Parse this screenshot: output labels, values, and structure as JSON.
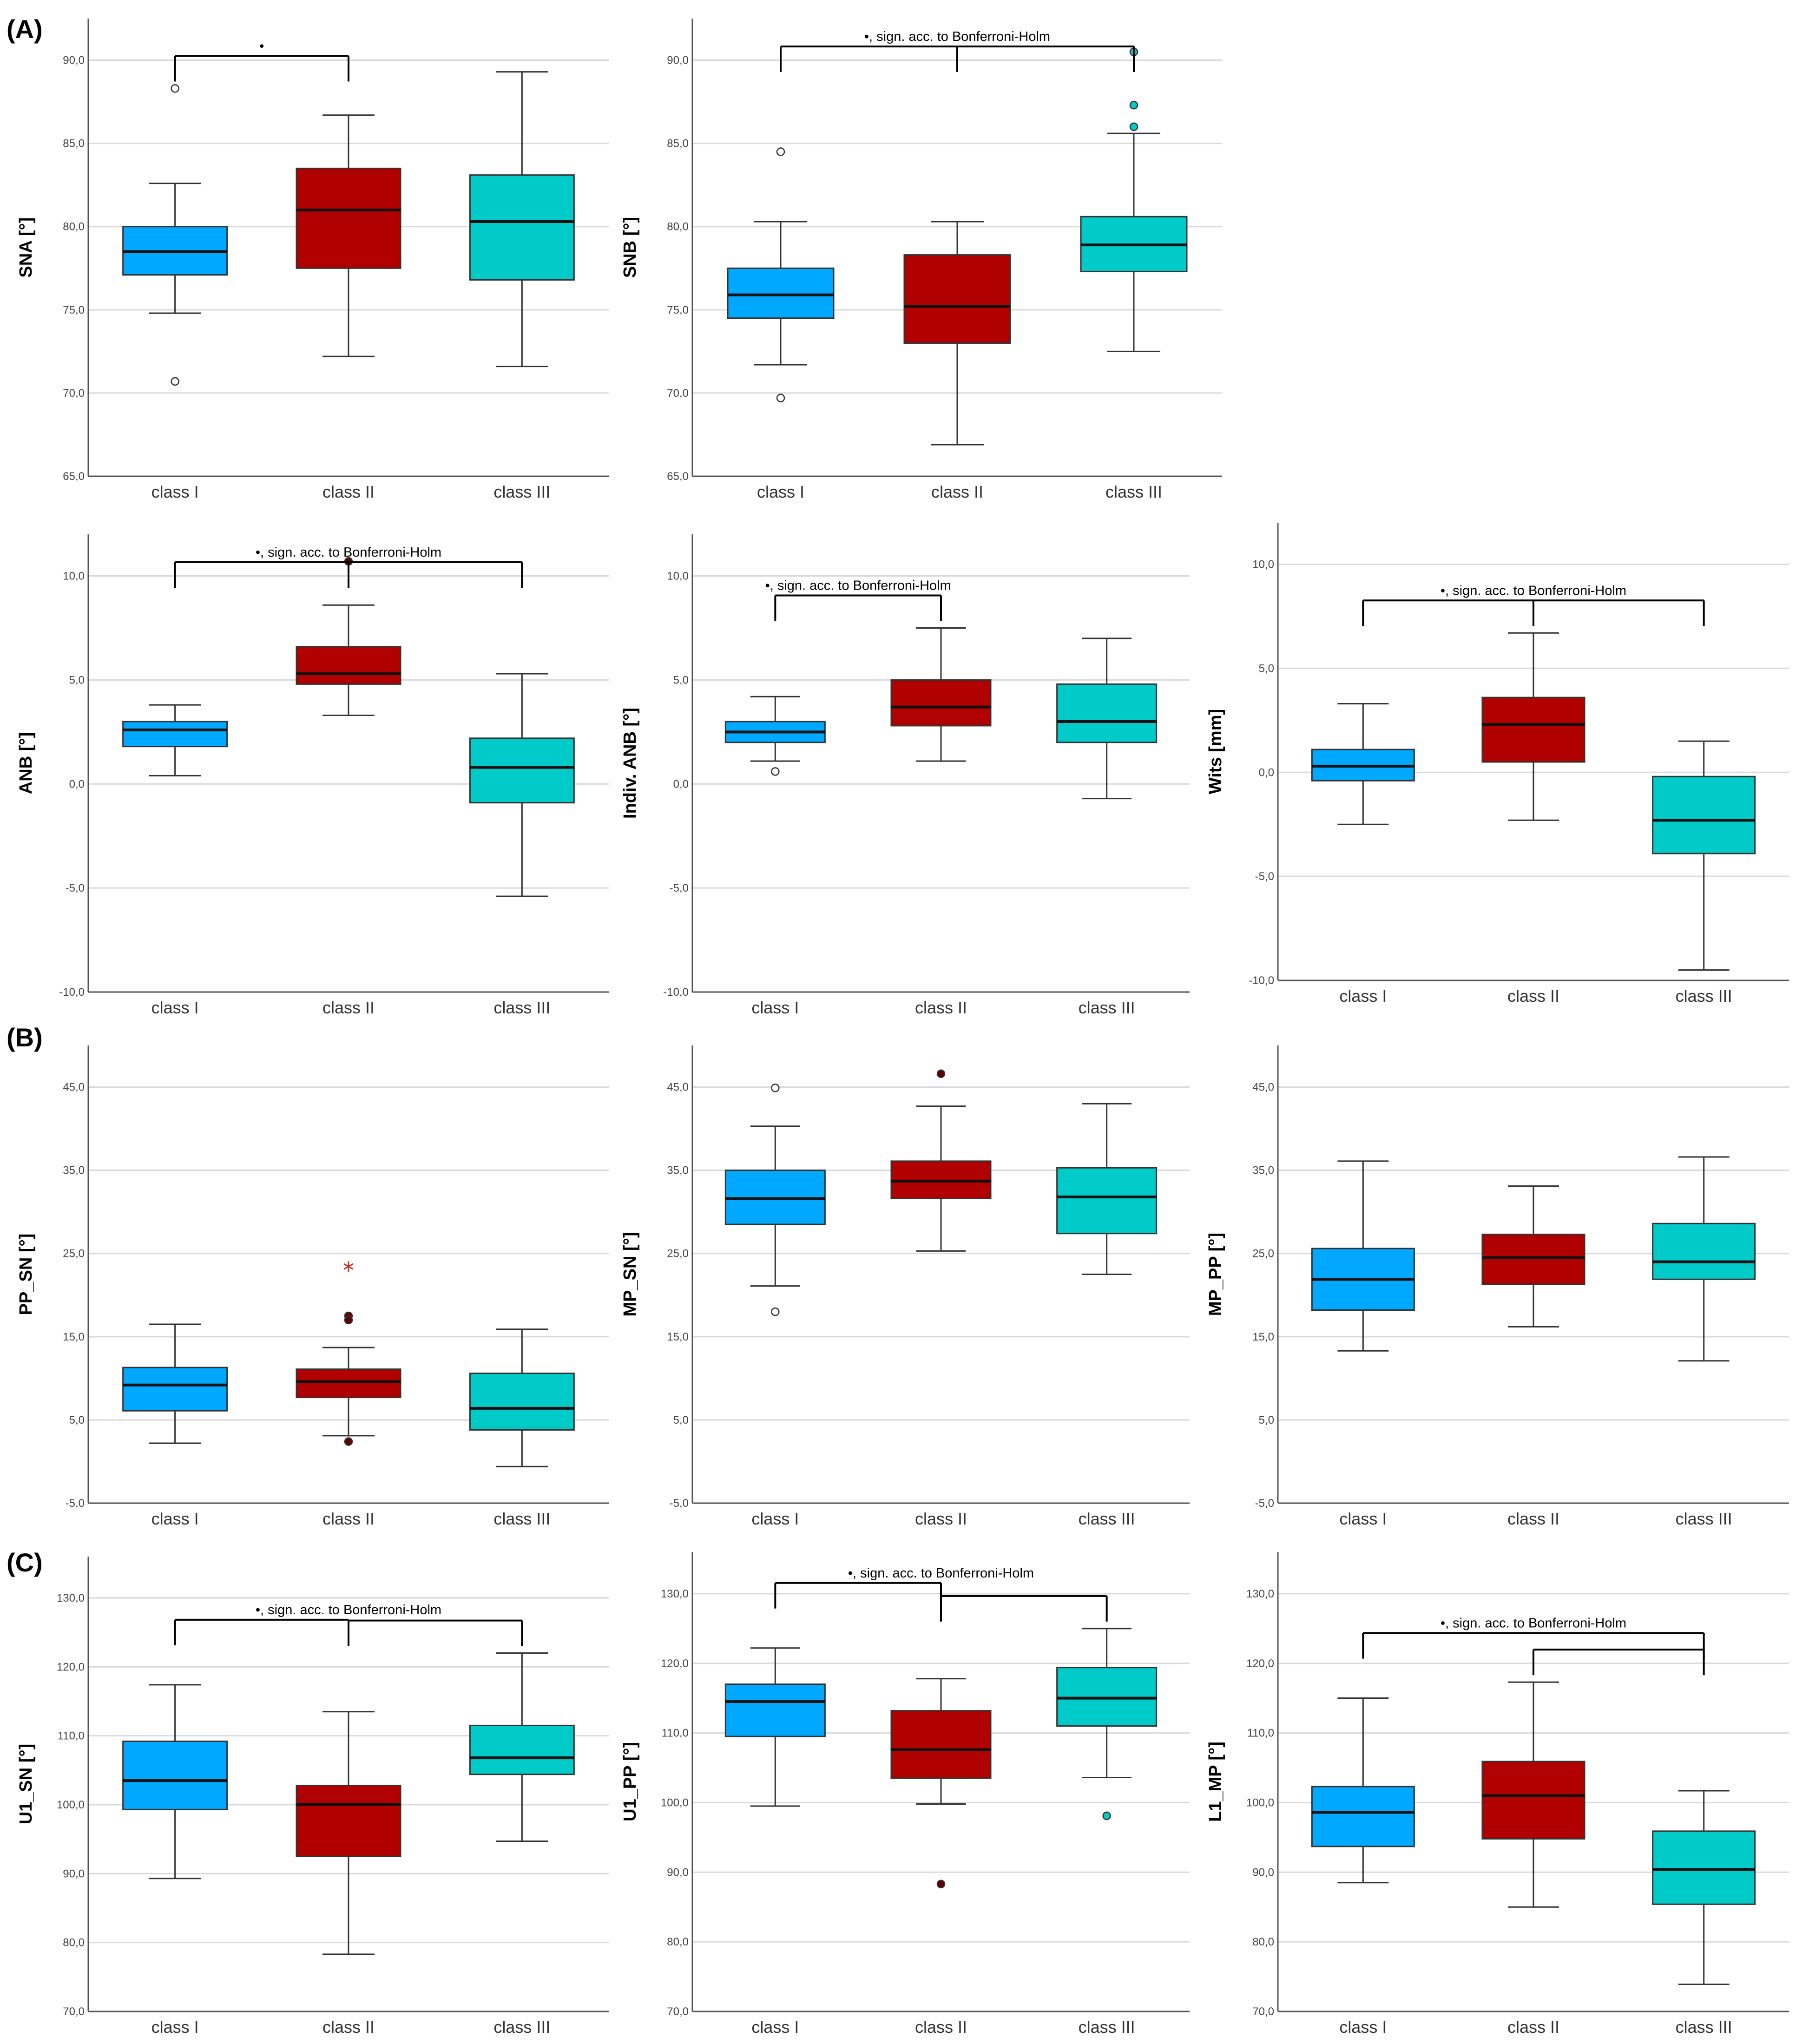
{
  "figure": {
    "sections": [
      "(A)",
      "(B)",
      "(C)"
    ],
    "colors": {
      "class_i": "#00a9ff",
      "class_ii": "#b00000",
      "class_iii": "#00cbc8",
      "gridline": "#d9d9d9",
      "whisker": "#333333"
    }
  },
  "chart_data": [
    {
      "type": "boxplot",
      "ylabel": "SNA [°]",
      "categories": [
        "class I",
        "class II",
        "class III"
      ],
      "ylim": [
        65.0,
        92.5
      ],
      "ticks": [
        "65,0",
        "70,0",
        "75,0",
        "80,0",
        "85,0",
        "90,0"
      ],
      "boxes": [
        {
          "min": 74.8,
          "q1": 77.1,
          "median": 78.5,
          "q3": 80.0,
          "max": 82.6,
          "outliers": [
            88.3,
            70.7
          ]
        },
        {
          "min": 72.2,
          "q1": 77.5,
          "median": 81.0,
          "q3": 83.5,
          "max": 86.7,
          "outliers": []
        },
        {
          "min": 71.6,
          "q1": 76.8,
          "median": 80.3,
          "q3": 83.1,
          "max": 89.3,
          "outliers": []
        }
      ],
      "annotation": "•",
      "comparisons": [
        [
          0,
          1
        ]
      ]
    },
    {
      "type": "boxplot",
      "ylabel": "SNB [°]",
      "categories": [
        "class I",
        "class II",
        "class III"
      ],
      "ylim": [
        65.0,
        92.5
      ],
      "ticks": [
        "65,0",
        "70,0",
        "75,0",
        "80,0",
        "85,0",
        "90,0"
      ],
      "boxes": [
        {
          "min": 71.7,
          "q1": 74.5,
          "median": 75.9,
          "q3": 77.5,
          "max": 80.3,
          "outliers": [
            84.5,
            69.7
          ]
        },
        {
          "min": 66.9,
          "q1": 73.0,
          "median": 75.2,
          "q3": 78.3,
          "max": 80.3,
          "outliers": []
        },
        {
          "min": 72.5,
          "q1": 77.3,
          "median": 78.9,
          "q3": 80.6,
          "max": 85.6,
          "outliers": [
            90.5,
            87.3,
            86.0
          ]
        }
      ],
      "annotation": "•, sign. acc. to Bonferroni-Holm",
      "comparisons": [
        [
          0,
          2
        ],
        [
          1,
          2
        ]
      ]
    },
    {
      "type": "boxplot",
      "ylabel": "ANB [°]",
      "categories": [
        "class I",
        "class II",
        "class III"
      ],
      "ylim": [
        -10.0,
        12.0
      ],
      "ticks": [
        "-10,0",
        "-5,0",
        "0,0",
        "5,0",
        "10,0"
      ],
      "boxes": [
        {
          "min": 0.4,
          "q1": 1.8,
          "median": 2.6,
          "q3": 3.0,
          "max": 3.8,
          "outliers": []
        },
        {
          "min": 3.3,
          "q1": 4.8,
          "median": 5.3,
          "q3": 6.6,
          "max": 8.6,
          "outliers": [
            10.7
          ]
        },
        {
          "min": -5.4,
          "q1": -0.9,
          "median": 0.8,
          "q3": 2.2,
          "max": 5.3,
          "outliers": []
        }
      ],
      "annotation": "•, sign. acc. to Bonferroni-Holm",
      "comparisons": [
        [
          0,
          1,
          2
        ]
      ]
    },
    {
      "type": "boxplot",
      "ylabel": "Indiv. ANB [°]",
      "categories": [
        "class I",
        "class II",
        "class III"
      ],
      "ylim": [
        -10.0,
        12.0
      ],
      "ticks": [
        "-10,0",
        "-5,0",
        "0,0",
        "5,0",
        "10,0"
      ],
      "boxes": [
        {
          "min": 1.1,
          "q1": 2.0,
          "median": 2.5,
          "q3": 3.0,
          "max": 4.2,
          "outliers": [
            0.6
          ]
        },
        {
          "min": 1.1,
          "q1": 2.8,
          "median": 3.7,
          "q3": 5.0,
          "max": 7.5,
          "outliers": []
        },
        {
          "min": -0.7,
          "q1": 2.0,
          "median": 3.0,
          "q3": 4.8,
          "max": 7.0,
          "outliers": []
        }
      ],
      "annotation": "•, sign. acc. to Bonferroni-Holm",
      "comparisons": [
        [
          0,
          1
        ]
      ]
    },
    {
      "type": "boxplot",
      "ylabel": "Wits [mm]",
      "categories": [
        "class I",
        "class II",
        "class III"
      ],
      "ylim": [
        -10.0,
        12.0
      ],
      "ticks": [
        "-10,0",
        "-5,0",
        "0,0",
        "5,0",
        "10,0"
      ],
      "boxes": [
        {
          "min": -2.5,
          "q1": -0.4,
          "median": 0.3,
          "q3": 1.1,
          "max": 3.3,
          "outliers": []
        },
        {
          "min": -2.3,
          "q1": 0.5,
          "median": 2.3,
          "q3": 3.6,
          "max": 6.7,
          "outliers": []
        },
        {
          "min": -9.5,
          "q1": -3.9,
          "median": -2.3,
          "q3": -0.2,
          "max": 1.5,
          "outliers": []
        }
      ],
      "annotation": "•, sign. acc. to Bonferroni-Holm",
      "comparisons": [
        [
          0,
          1,
          2
        ]
      ]
    },
    {
      "type": "boxplot",
      "ylabel": "PP_SN [°]",
      "categories": [
        "class I",
        "class II",
        "class III"
      ],
      "ylim": [
        -5.0,
        50.0
      ],
      "ticks": [
        "-5,0",
        "5,0",
        "15,0",
        "25,0",
        "35,0",
        "45,0"
      ],
      "boxes": [
        {
          "min": 2.2,
          "q1": 6.1,
          "median": 9.2,
          "q3": 11.3,
          "max": 16.5,
          "outliers": []
        },
        {
          "min": 3.1,
          "q1": 7.7,
          "median": 9.6,
          "q3": 11.1,
          "max": 13.7,
          "outliers": [
            17.5,
            17.0,
            2.4
          ]
        },
        {
          "min": -0.6,
          "q1": 3.8,
          "median": 6.4,
          "q3": 10.6,
          "max": 15.9,
          "outliers": []
        }
      ],
      "extremes": [
        null,
        23.6,
        null
      ],
      "annotation": "",
      "comparisons": []
    },
    {
      "type": "boxplot",
      "ylabel": "MP_SN [°]",
      "categories": [
        "class I",
        "class II",
        "class III"
      ],
      "ylim": [
        -5.0,
        50.0
      ],
      "ticks": [
        "-5,0",
        "5,0",
        "15,0",
        "25,0",
        "35,0",
        "45,0"
      ],
      "boxes": [
        {
          "min": 21.1,
          "q1": 28.5,
          "median": 31.6,
          "q3": 35.0,
          "max": 40.3,
          "outliers": [
            44.9,
            18.0
          ]
        },
        {
          "min": 25.3,
          "q1": 31.6,
          "median": 33.7,
          "q3": 36.1,
          "max": 42.7,
          "outliers": [
            46.6
          ]
        },
        {
          "min": 22.5,
          "q1": 27.4,
          "median": 31.8,
          "q3": 35.3,
          "max": 43.0,
          "outliers": []
        }
      ],
      "annotation": "",
      "comparisons": []
    },
    {
      "type": "boxplot",
      "ylabel": "MP_PP [°]",
      "categories": [
        "class I",
        "class II",
        "class III"
      ],
      "ylim": [
        -5.0,
        50.0
      ],
      "ticks": [
        "-5,0",
        "5,0",
        "15,0",
        "25,0",
        "35,0",
        "45,0"
      ],
      "boxes": [
        {
          "min": 13.3,
          "q1": 18.2,
          "median": 21.9,
          "q3": 25.6,
          "max": 36.1,
          "outliers": []
        },
        {
          "min": 16.2,
          "q1": 21.3,
          "median": 24.5,
          "q3": 27.3,
          "max": 33.1,
          "outliers": []
        },
        {
          "min": 12.1,
          "q1": 21.9,
          "median": 24.0,
          "q3": 28.6,
          "max": 36.6,
          "outliers": []
        }
      ],
      "annotation": "",
      "comparisons": []
    },
    {
      "type": "boxplot",
      "ylabel": "U1_SN [°]",
      "categories": [
        "class I",
        "class II",
        "class III"
      ],
      "ylim": [
        70.0,
        136.0
      ],
      "ticks": [
        "70,0",
        "80,0",
        "90,0",
        "100,0",
        "110,0",
        "120,0",
        "130,0"
      ],
      "boxes": [
        {
          "min": 89.3,
          "q1": 99.3,
          "median": 103.5,
          "q3": 109.2,
          "max": 117.4,
          "outliers": []
        },
        {
          "min": 78.3,
          "q1": 92.5,
          "median": 100.0,
          "q3": 102.8,
          "max": 113.5,
          "outliers": []
        },
        {
          "min": 94.7,
          "q1": 104.4,
          "median": 106.8,
          "q3": 111.5,
          "max": 122.0,
          "outliers": []
        }
      ],
      "annotation": "•, sign. acc. to Bonferroni-Holm",
      "comparisons": [
        [
          0,
          1
        ],
        [
          1,
          2
        ]
      ]
    },
    {
      "type": "boxplot",
      "ylabel": "U1_PP [°]",
      "categories": [
        "class I",
        "class II",
        "class III"
      ],
      "ylim": [
        70.0,
        136.0
      ],
      "ticks": [
        "70,0",
        "80,0",
        "90,0",
        "100,0",
        "110,0",
        "120,0",
        "130,0"
      ],
      "boxes": [
        {
          "min": 99.5,
          "q1": 109.5,
          "median": 114.5,
          "q3": 117.0,
          "max": 122.2,
          "outliers": []
        },
        {
          "min": 99.8,
          "q1": 103.5,
          "median": 107.6,
          "q3": 113.2,
          "max": 117.8,
          "outliers": [
            88.3
          ]
        },
        {
          "min": 103.6,
          "q1": 111.0,
          "median": 115.0,
          "q3": 119.4,
          "max": 125.0,
          "outliers": [
            98.1
          ]
        }
      ],
      "annotation": "•, sign. acc. to Bonferroni-Holm",
      "comparisons": [
        [
          0,
          1
        ],
        [
          1,
          2
        ]
      ]
    },
    {
      "type": "boxplot",
      "ylabel": "L1_MP [°]",
      "categories": [
        "class I",
        "class II",
        "class III"
      ],
      "ylim": [
        70.0,
        136.0
      ],
      "ticks": [
        "70,0",
        "80,0",
        "90,0",
        "100,0",
        "110,0",
        "120,0",
        "130,0"
      ],
      "boxes": [
        {
          "min": 88.5,
          "q1": 93.7,
          "median": 98.6,
          "q3": 102.3,
          "max": 115.0,
          "outliers": []
        },
        {
          "min": 85.0,
          "q1": 94.8,
          "median": 101.0,
          "q3": 105.9,
          "max": 117.3,
          "outliers": []
        },
        {
          "min": 73.9,
          "q1": 85.4,
          "median": 90.4,
          "q3": 95.9,
          "max": 101.7,
          "outliers": []
        }
      ],
      "annotation": "•, sign. acc. to Bonferroni-Holm",
      "comparisons": [
        [
          0,
          2
        ],
        [
          1,
          2
        ]
      ]
    }
  ]
}
